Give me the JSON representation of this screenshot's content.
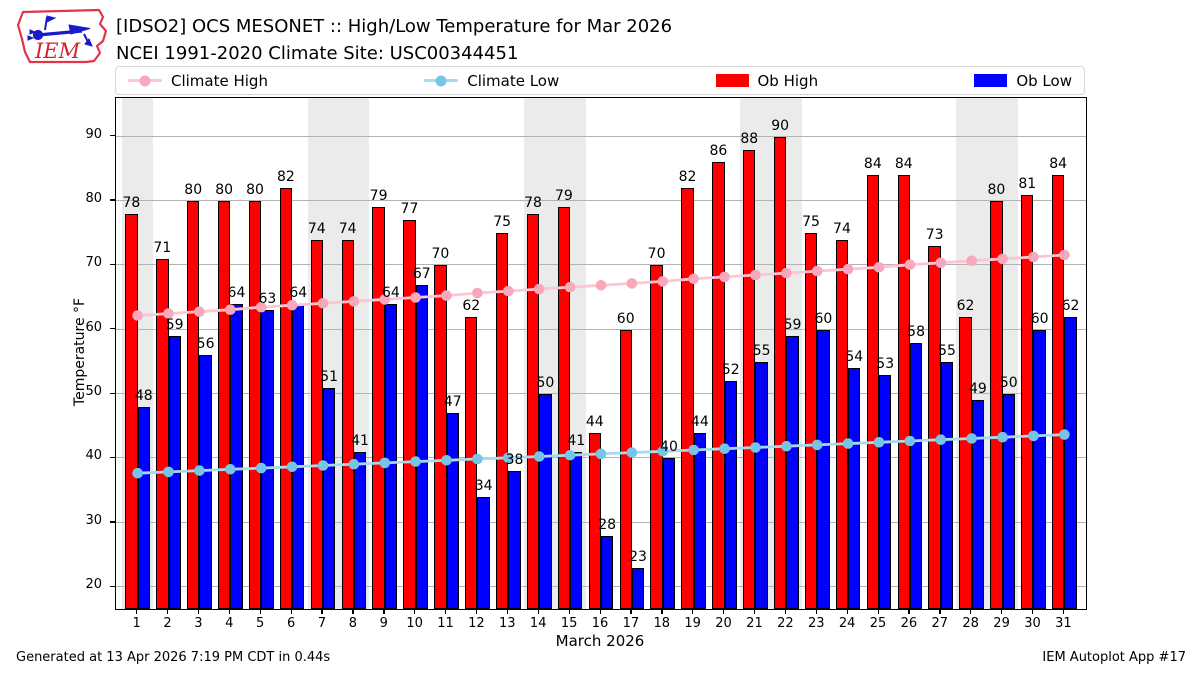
{
  "header": {
    "title_line1": "[IDSO2] OCS MESONET :: High/Low Temperature for Mar 2026",
    "title_line2": "NCEI 1991-2020 Climate Site: USC00344451",
    "logo_text": "IEM"
  },
  "legend": [
    {
      "label": "Climate High",
      "type": "line",
      "color": "#fcc7d2",
      "marker_color": "#f7a8bb"
    },
    {
      "label": "Climate Low",
      "type": "line",
      "color": "#a8daee",
      "marker_color": "#76c5e7"
    },
    {
      "label": "Ob High",
      "type": "swatch",
      "color": "#ff0000",
      "marker_color": "#ff0000"
    },
    {
      "label": "Ob Low",
      "type": "swatch",
      "color": "#0000ff",
      "marker_color": "#0000ff"
    }
  ],
  "chart_data": {
    "type": "bar",
    "title": "[IDSO2] OCS MESONET :: High/Low Temperature for Mar 2026",
    "subtitle": "NCEI 1991-2020 Climate Site: USC00344451",
    "xlabel": "March 2026",
    "ylabel": "Temperature °F",
    "x": [
      1,
      2,
      3,
      4,
      5,
      6,
      7,
      8,
      9,
      10,
      11,
      12,
      13,
      14,
      15,
      16,
      17,
      18,
      19,
      20,
      21,
      22,
      23,
      24,
      25,
      26,
      27,
      28,
      29,
      30,
      31
    ],
    "xlim": [
      0.3,
      31.7
    ],
    "ylim": [
      16.6,
      96.0
    ],
    "yticks": [
      20,
      30,
      40,
      50,
      60,
      70,
      80,
      90
    ],
    "grid": true,
    "legend_position": "top",
    "grid_color": "#b3b3b3",
    "weekend_band_color": "#ebebeb",
    "weekend_bands": [
      [
        0.5,
        1.5
      ],
      [
        6.5,
        8.5
      ],
      [
        13.5,
        15.5
      ],
      [
        20.5,
        22.5
      ],
      [
        27.5,
        29.5
      ]
    ],
    "series": [
      {
        "name": "Ob High",
        "type": "bar",
        "color": "#ff0000",
        "values": [
          78,
          71,
          80,
          80,
          80,
          82,
          74,
          74,
          79,
          77,
          70,
          62,
          75,
          78,
          79,
          44,
          60,
          70,
          82,
          86,
          88,
          90,
          75,
          74,
          84,
          84,
          73,
          62,
          80,
          81,
          84
        ]
      },
      {
        "name": "Ob Low",
        "type": "bar",
        "color": "#0000ff",
        "values": [
          48,
          59,
          56,
          64,
          63,
          64,
          51,
          41,
          64,
          67,
          47,
          34,
          38,
          50,
          41,
          28,
          23,
          40,
          44,
          52,
          55,
          59,
          60,
          54,
          53,
          58,
          55,
          49,
          50,
          60,
          62
        ]
      },
      {
        "name": "Climate High",
        "type": "line",
        "color": "#fcc7d2",
        "marker_color": "#f7a8bb",
        "values": [
          62.2,
          62.5,
          62.8,
          63.1,
          63.5,
          63.8,
          64.1,
          64.4,
          64.7,
          65.0,
          65.3,
          65.7,
          66.0,
          66.3,
          66.6,
          66.9,
          67.2,
          67.5,
          67.9,
          68.2,
          68.5,
          68.8,
          69.1,
          69.4,
          69.7,
          70.1,
          70.4,
          70.7,
          71.0,
          71.3,
          71.6
        ]
      },
      {
        "name": "Climate Low",
        "type": "line",
        "color": "#a8daee",
        "marker_color": "#76c5e7",
        "values": [
          37.7,
          37.9,
          38.1,
          38.3,
          38.5,
          38.7,
          38.9,
          39.1,
          39.3,
          39.5,
          39.7,
          39.9,
          40.1,
          40.3,
          40.5,
          40.7,
          40.9,
          41.1,
          41.3,
          41.5,
          41.7,
          41.9,
          42.1,
          42.3,
          42.5,
          42.7,
          42.9,
          43.1,
          43.3,
          43.5,
          43.7
        ]
      }
    ]
  },
  "footer": {
    "left": "Generated at 13 Apr 2026 7:19 PM CDT in 0.44s",
    "right": "IEM Autoplot App #17"
  }
}
